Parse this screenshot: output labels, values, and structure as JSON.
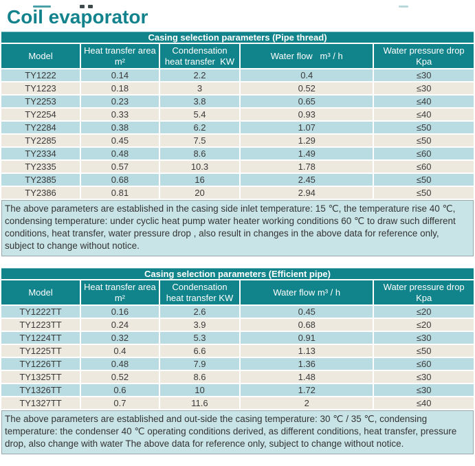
{
  "page": {
    "title": "Coil evaporator"
  },
  "colors": {
    "title_text": "#12828C",
    "teal_header": "#10838B",
    "row_blue": "#B8DCE1",
    "row_cream": "#EDE9DE",
    "note_bg": "#C9E4E7",
    "note_border": "#98A8AB",
    "cell_text": "#3A3A3A"
  },
  "tables": [
    {
      "caption": "Casing selection parameters (Pipe thread)",
      "columns": [
        "Model",
        "Heat transfer area\nm²",
        "Condensation\nheat transfer  KW",
        "Water flow   m³ / h",
        "Water pressure drop\nKpa"
      ],
      "rows": [
        [
          "TY1222",
          "0.14",
          "2.2",
          "0.4",
          "≤30"
        ],
        [
          "TY1223",
          "0.18",
          "3",
          "0.52",
          "≤30"
        ],
        [
          "TY2253",
          "0.23",
          "3.8",
          "0.65",
          "≤40"
        ],
        [
          "TY2254",
          "0.33",
          "5.4",
          "0.93",
          "≤40"
        ],
        [
          "TY2284",
          "0.38",
          "6.2",
          "1.07",
          "≤50"
        ],
        [
          "TY2285",
          "0.45",
          "7.5",
          "1.29",
          "≤50"
        ],
        [
          "TY2334",
          "0.48",
          "8.6",
          "1.49",
          "≤60"
        ],
        [
          "TY2335",
          "0.57",
          "10.3",
          "1.78",
          "≤60"
        ],
        [
          "TY2385",
          "0.68",
          "16",
          "2.45",
          "≤50"
        ],
        [
          "TY2386",
          "0.81",
          "20",
          "2.94",
          "≤50"
        ]
      ],
      "note": "The above parameters are established in the casing side inlet temperature: 15 ℃, the temperature rise 40 ℃, condensing temperature: under cyclic heat pump water heater working conditions 60 ℃ to draw such different conditions, heat transfer, water pressure drop , also result in changes in the above data for reference only, subject to change without notice."
    },
    {
      "caption": "Casing selection parameters (Efficient pipe)",
      "columns": [
        "Model",
        "Heat transfer area\nm²",
        "Condensation\nheat transfer KW",
        "Water flow m³ / h",
        "Water pressure drop\nKpa"
      ],
      "rows": [
        [
          "TY1222TT",
          "0.16",
          "2.6",
          "0.45",
          "≤20"
        ],
        [
          "TY1223TT",
          "0.24",
          "3.9",
          "0.68",
          "≤20"
        ],
        [
          "TY1224TT",
          "0.32",
          "5.3",
          "0.91",
          "≤30"
        ],
        [
          "TY1225TT",
          "0.4",
          "6.6",
          "1.13",
          "≤50"
        ],
        [
          "TY1226TT",
          "0.48",
          "7.9",
          "1.36",
          "≤60"
        ],
        [
          "TY1325TT",
          "0.52",
          "8.6",
          "1.48",
          "≤30"
        ],
        [
          "TY1326TT",
          "0.6",
          "10",
          "1.72",
          "≤30"
        ],
        [
          "TY1327TT",
          "0.7",
          "11.6",
          "2",
          "≤40"
        ]
      ],
      "note": "The above parameters are established and out-side the casing temperature: 30 ℃ / 35 ℃, condensing temperature: the condenser 40 ℃ operating conditions derived, as different conditions, heat transfer, pressure drop, also change with water The above data for reference only, subject to change without notice."
    }
  ]
}
